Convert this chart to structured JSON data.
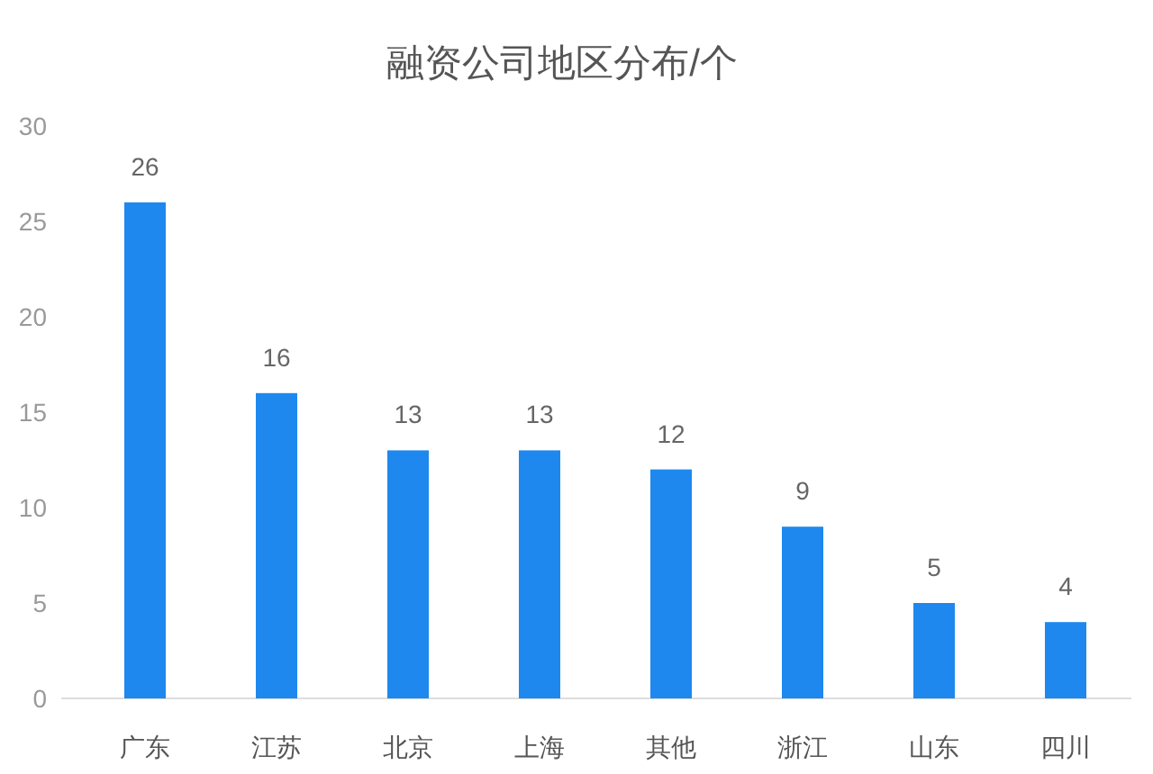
{
  "chart_data": {
    "type": "bar",
    "title": "融资公司地区分布/个",
    "categories": [
      "广东",
      "江苏",
      "北京",
      "上海",
      "其他",
      "浙江",
      "山东",
      "四川"
    ],
    "values": [
      26,
      16,
      13,
      13,
      12,
      9,
      5,
      4
    ],
    "color": "#1e88ee",
    "ylim": [
      0,
      30
    ],
    "yticks": [
      0,
      5,
      10,
      15,
      20,
      25,
      30
    ],
    "data_labels": true
  }
}
